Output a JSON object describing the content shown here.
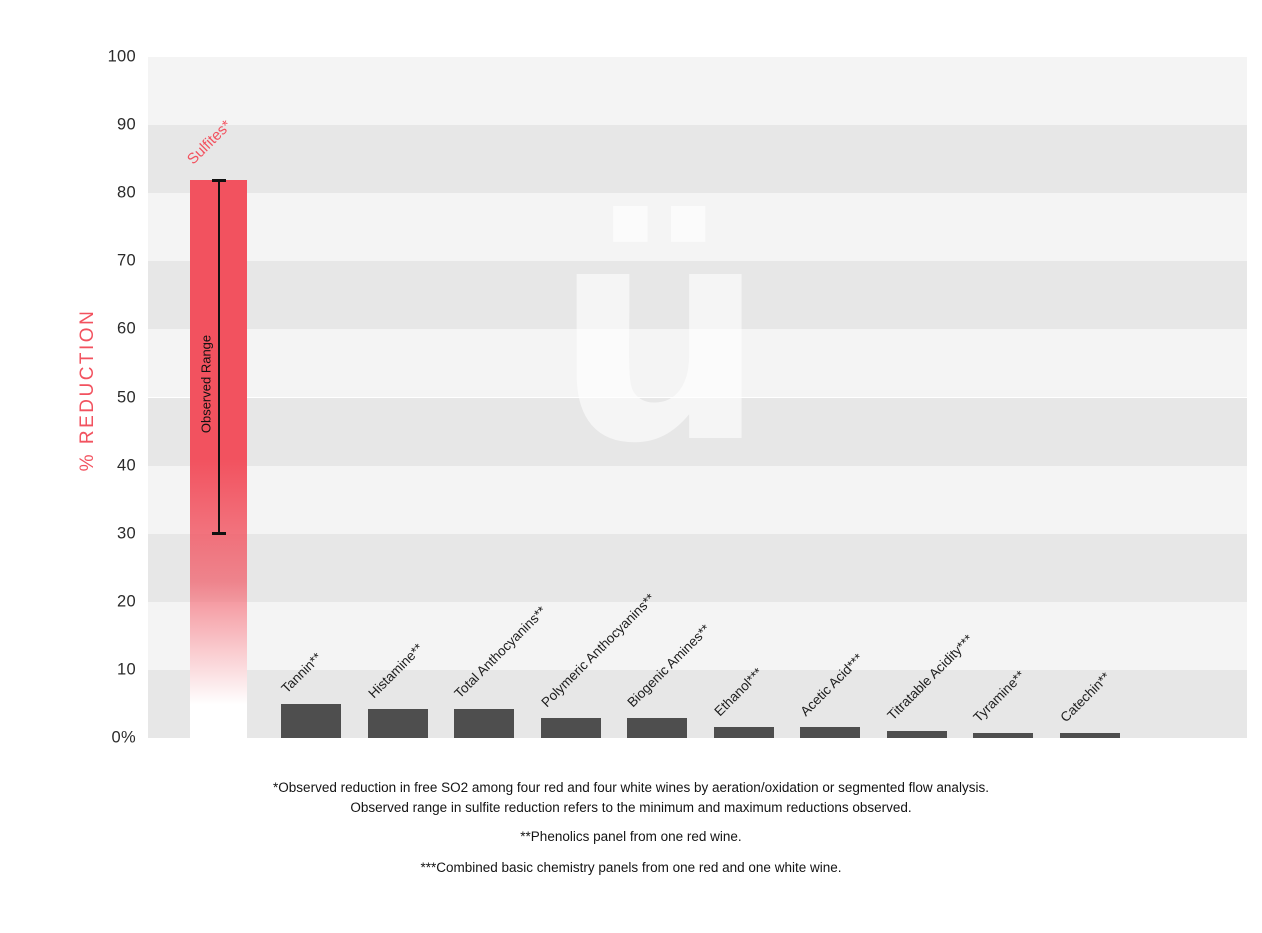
{
  "chart_data": {
    "type": "bar",
    "title": "",
    "xlabel": "",
    "ylabel": "% REDUCTION",
    "ylim": [
      0,
      100
    ],
    "ytick_labels": [
      "100",
      "90",
      "80",
      "70",
      "60",
      "50",
      "40",
      "30",
      "20",
      "10",
      "0%"
    ],
    "grid": "alternating horizontal bands, 10% tall",
    "legend": "none",
    "highlight": {
      "label": "Sulfites*",
      "value": 82,
      "range_label": "Observed Range",
      "range_min": 30,
      "range_max": 82
    },
    "categories": [
      "Tannin**",
      "Histamine**",
      "Total Anthocyanins**",
      "Polymeric Anthocyanins**",
      "Biogenic Amines**",
      "Ethanol***",
      "Acetic Acid***",
      "Titratable Acidity***",
      "Tyramine**",
      "Catechin**"
    ],
    "values": [
      5,
      4.3,
      4.3,
      2.9,
      2.9,
      1.6,
      1.6,
      1.0,
      0.8,
      0.7
    ],
    "colors": {
      "accent": "#f2525f",
      "bar": "#4e4e4e",
      "stripe_light": "#f4f4f4",
      "stripe_dark": "#e7e7e7",
      "range_line": "#111111",
      "tick_text": "#2b2b2b"
    }
  },
  "watermark": {
    "glyph": "ü"
  },
  "footnotes": {
    "line1": "*Observed reduction in free SO2 among four red and four white wines by aeration/oxidation or segmented flow analysis.",
    "line2": "Observed range in sulfite reduction refers to the minimum and maximum reductions observed.",
    "line3": "**Phenolics panel from one red wine.",
    "line4": "***Combined basic chemistry panels from one red and one white wine."
  }
}
